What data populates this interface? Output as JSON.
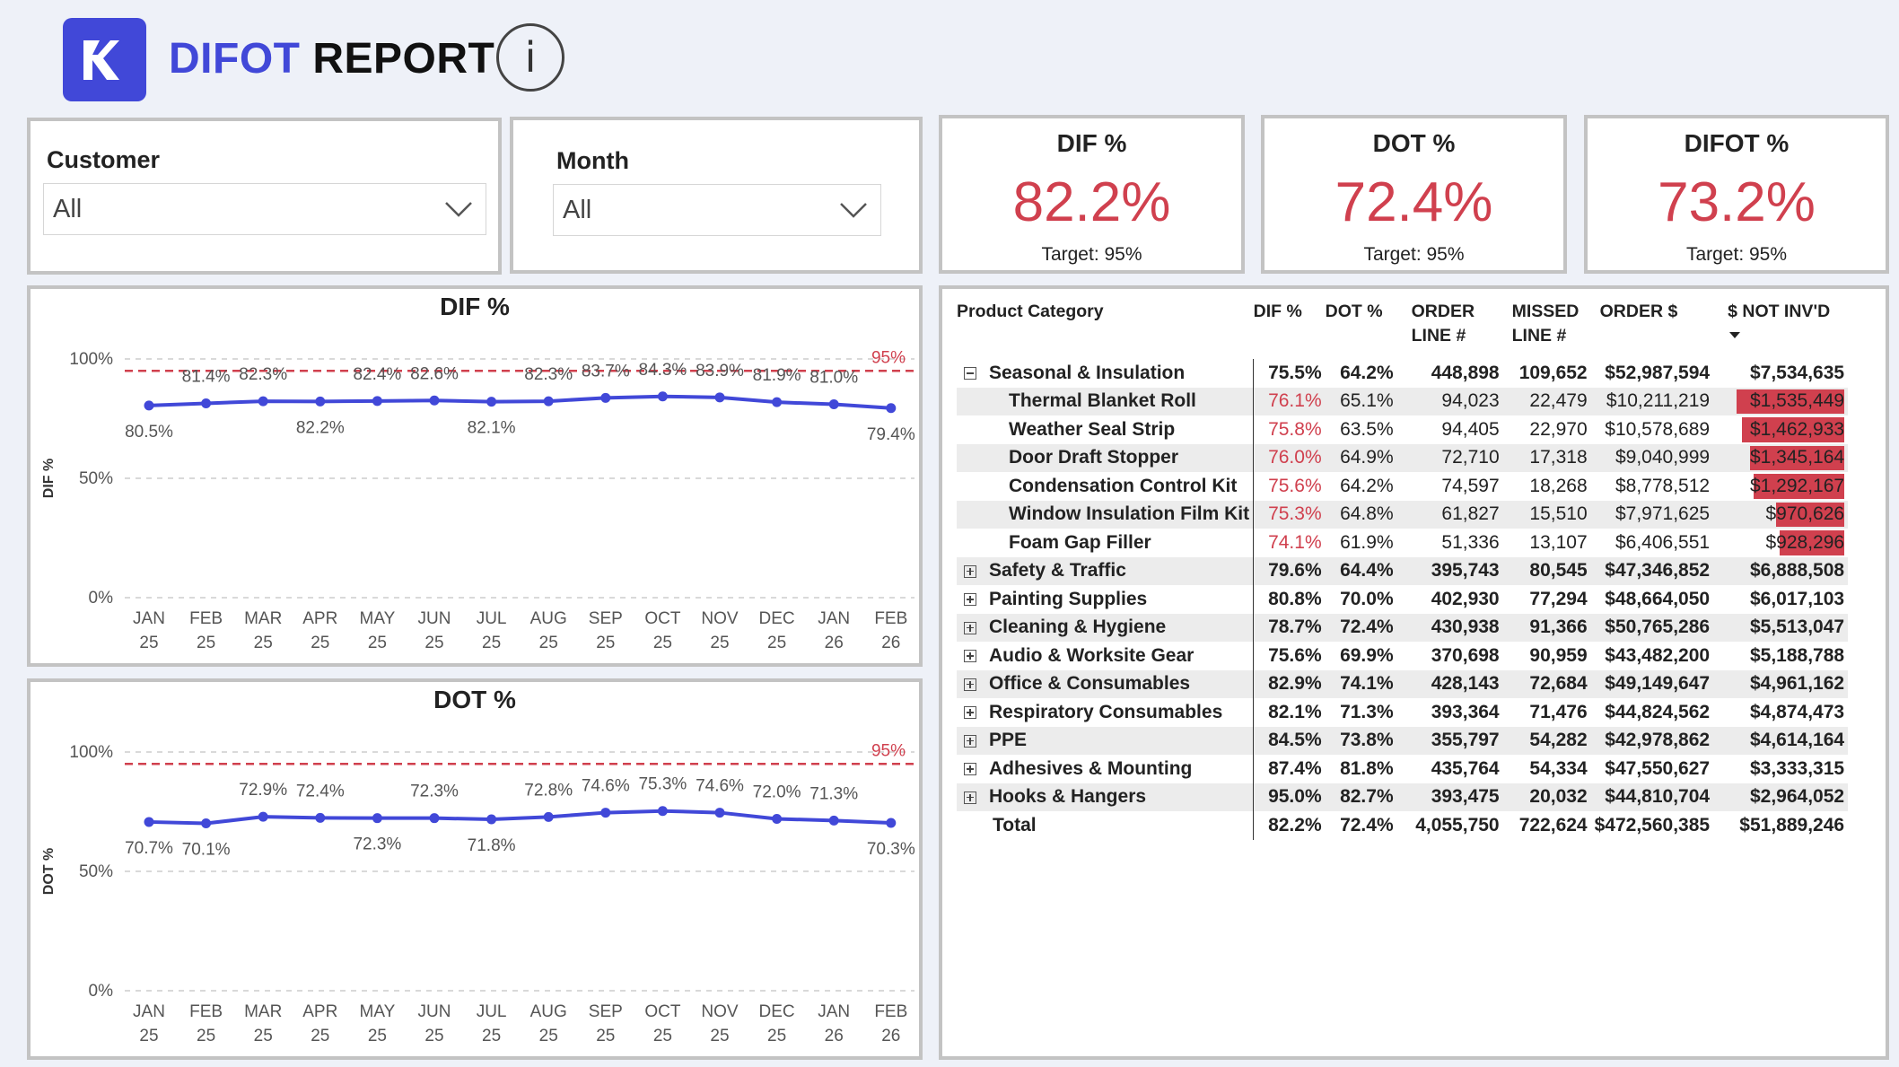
{
  "header": {
    "title_part1": "DIFOT",
    "title_part2": " REPORT",
    "info_label": "i"
  },
  "slicers": {
    "customer": {
      "label": "Customer",
      "value": "All"
    },
    "month": {
      "label": "Month",
      "value": "All"
    }
  },
  "kpis": [
    {
      "title": "DIF %",
      "value": "82.2%",
      "target": "Target: 95%"
    },
    {
      "title": "DOT %",
      "value": "72.4%",
      "target": "Target: 95%"
    },
    {
      "title": "DIFOT %",
      "value": "73.2%",
      "target": "Target: 95%"
    }
  ],
  "colors": {
    "accent": "#4148d8",
    "alert": "#d0404e",
    "target_line": "#d0404e"
  },
  "chart_data": [
    {
      "type": "line",
      "title": "DIF %",
      "ylabel": "DIF %",
      "yticks": [
        "0%",
        "50%",
        "100%"
      ],
      "ylim": [
        0,
        100
      ],
      "target": 95,
      "target_label": "95%",
      "x_month": [
        "JAN",
        "FEB",
        "MAR",
        "APR",
        "MAY",
        "JUN",
        "JUL",
        "AUG",
        "SEP",
        "OCT",
        "NOV",
        "DEC",
        "JAN",
        "FEB"
      ],
      "x_year": [
        "25",
        "25",
        "25",
        "25",
        "25",
        "25",
        "25",
        "25",
        "25",
        "25",
        "25",
        "25",
        "26",
        "26"
      ],
      "values": [
        80.5,
        81.4,
        82.3,
        82.2,
        82.4,
        82.6,
        82.1,
        82.3,
        83.7,
        84.3,
        83.9,
        81.9,
        81.0,
        79.4
      ],
      "labels": [
        "80.5%",
        "81.4%",
        "82.3%",
        "82.2%",
        "82.4%",
        "82.6%",
        "82.1%",
        "82.3%",
        "83.7%",
        "84.3%",
        "83.9%",
        "81.9%",
        "81.0%",
        "79.4%"
      ]
    },
    {
      "type": "line",
      "title": "DOT %",
      "ylabel": "DOT %",
      "yticks": [
        "0%",
        "50%",
        "100%"
      ],
      "ylim": [
        0,
        100
      ],
      "target": 95,
      "target_label": "95%",
      "x_month": [
        "JAN",
        "FEB",
        "MAR",
        "APR",
        "MAY",
        "JUN",
        "JUL",
        "AUG",
        "SEP",
        "OCT",
        "NOV",
        "DEC",
        "JAN",
        "FEB"
      ],
      "x_year": [
        "25",
        "25",
        "25",
        "25",
        "25",
        "25",
        "25",
        "25",
        "25",
        "25",
        "25",
        "25",
        "26",
        "26"
      ],
      "values": [
        70.7,
        70.1,
        72.9,
        72.4,
        72.3,
        72.3,
        71.8,
        72.8,
        74.6,
        75.3,
        74.6,
        72.0,
        71.3,
        70.3
      ],
      "labels": [
        "70.7%",
        "70.1%",
        "72.9%",
        "72.4%",
        "72.3%",
        "72.3%",
        "71.8%",
        "72.8%",
        "74.6%",
        "75.3%",
        "74.6%",
        "72.0%",
        "71.3%",
        "70.3%"
      ]
    }
  ],
  "matrix": {
    "headers": [
      "Product Category",
      "DIF %",
      "DOT %",
      "ORDER LINE #",
      "MISSED LINE #",
      "ORDER $",
      "$ NOT INV'D"
    ],
    "rows": [
      {
        "level": "cat",
        "expanded": true,
        "name": "Seasonal & Insulation",
        "dif": "75.5%",
        "dot": "64.2%",
        "order_line": "448,898",
        "missed_line": "109,652",
        "order_amt": "$52,987,594",
        "not_inv": "$7,534,635"
      },
      {
        "level": "sub",
        "name": "Thermal Blanket Roll",
        "dif": "76.1%",
        "dot": "65.1%",
        "order_line": "94,023",
        "missed_line": "22,479",
        "order_amt": "$10,211,219",
        "not_inv": "$1,535,449",
        "not_inv_value": 1535449
      },
      {
        "level": "sub",
        "name": "Weather Seal Strip",
        "dif": "75.8%",
        "dot": "63.5%",
        "order_line": "94,405",
        "missed_line": "22,970",
        "order_amt": "$10,578,689",
        "not_inv": "$1,462,933",
        "not_inv_value": 1462933
      },
      {
        "level": "sub",
        "name": "Door Draft Stopper",
        "dif": "76.0%",
        "dot": "64.9%",
        "order_line": "72,710",
        "missed_line": "17,318",
        "order_amt": "$9,040,999",
        "not_inv": "$1,345,164",
        "not_inv_value": 1345164
      },
      {
        "level": "sub",
        "name": "Condensation Control Kit",
        "dif": "75.6%",
        "dot": "64.2%",
        "order_line": "74,597",
        "missed_line": "18,268",
        "order_amt": "$8,778,512",
        "not_inv": "$1,292,167",
        "not_inv_value": 1292167
      },
      {
        "level": "sub",
        "name": "Window Insulation Film Kit",
        "dif": "75.3%",
        "dot": "64.8%",
        "order_line": "61,827",
        "missed_line": "15,510",
        "order_amt": "$7,971,625",
        "not_inv": "$970,626",
        "not_inv_value": 970626
      },
      {
        "level": "sub",
        "name": "Foam Gap Filler",
        "dif": "74.1%",
        "dot": "61.9%",
        "order_line": "51,336",
        "missed_line": "13,107",
        "order_amt": "$6,406,551",
        "not_inv": "$928,296",
        "not_inv_value": 928296
      },
      {
        "level": "cat",
        "expanded": false,
        "name": "Safety & Traffic",
        "dif": "79.6%",
        "dot": "64.4%",
        "order_line": "395,743",
        "missed_line": "80,545",
        "order_amt": "$47,346,852",
        "not_inv": "$6,888,508"
      },
      {
        "level": "cat",
        "expanded": false,
        "name": "Painting Supplies",
        "dif": "80.8%",
        "dot": "70.0%",
        "order_line": "402,930",
        "missed_line": "77,294",
        "order_amt": "$48,664,050",
        "not_inv": "$6,017,103"
      },
      {
        "level": "cat",
        "expanded": false,
        "name": "Cleaning & Hygiene",
        "dif": "78.7%",
        "dot": "72.4%",
        "order_line": "430,938",
        "missed_line": "91,366",
        "order_amt": "$50,765,286",
        "not_inv": "$5,513,047"
      },
      {
        "level": "cat",
        "expanded": false,
        "name": "Audio & Worksite Gear",
        "dif": "75.6%",
        "dot": "69.9%",
        "order_line": "370,698",
        "missed_line": "90,959",
        "order_amt": "$43,482,200",
        "not_inv": "$5,188,788"
      },
      {
        "level": "cat",
        "expanded": false,
        "name": "Office & Consumables",
        "dif": "82.9%",
        "dot": "74.1%",
        "order_line": "428,143",
        "missed_line": "72,684",
        "order_amt": "$49,149,647",
        "not_inv": "$4,961,162"
      },
      {
        "level": "cat",
        "expanded": false,
        "name": "Respiratory Consumables",
        "dif": "82.1%",
        "dot": "71.3%",
        "order_line": "393,364",
        "missed_line": "71,476",
        "order_amt": "$44,824,562",
        "not_inv": "$4,874,473"
      },
      {
        "level": "cat",
        "expanded": false,
        "name": "PPE",
        "dif": "84.5%",
        "dot": "73.8%",
        "order_line": "355,797",
        "missed_line": "54,282",
        "order_amt": "$42,978,862",
        "not_inv": "$4,614,164"
      },
      {
        "level": "cat",
        "expanded": false,
        "name": "Adhesives & Mounting",
        "dif": "87.4%",
        "dot": "81.8%",
        "order_line": "435,764",
        "missed_line": "54,334",
        "order_amt": "$47,550,627",
        "not_inv": "$3,333,315"
      },
      {
        "level": "cat",
        "expanded": false,
        "name": "Hooks & Hangers",
        "dif": "95.0%",
        "dot": "82.7%",
        "order_line": "393,475",
        "missed_line": "20,032",
        "order_amt": "$44,810,704",
        "not_inv": "$2,964,052"
      },
      {
        "level": "total",
        "name": "Total",
        "dif": "82.2%",
        "dot": "72.4%",
        "order_line": "4,055,750",
        "missed_line": "722,624",
        "order_amt": "$472,560,385",
        "not_inv": "$51,889,246"
      }
    ]
  }
}
